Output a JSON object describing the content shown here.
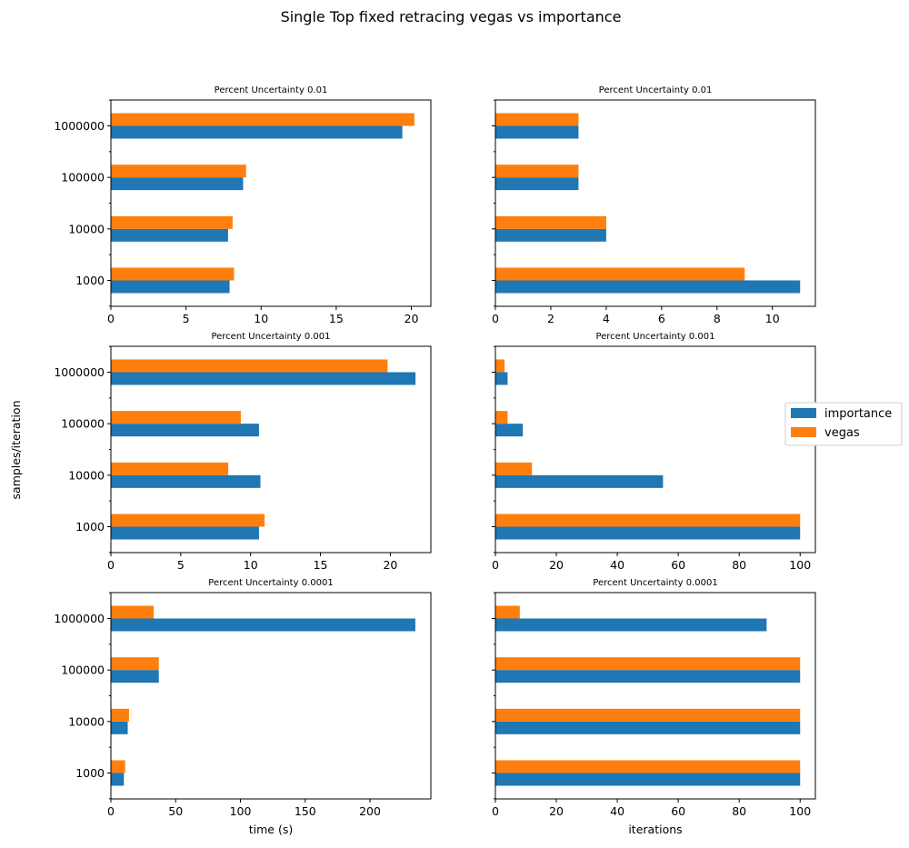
{
  "figure": {
    "title": "Single Top fixed retracing vegas vs importance",
    "ylabel": "samples/iteration"
  },
  "legend": {
    "placement": "right",
    "entries": [
      {
        "label": "importance",
        "color": "#1f77b4"
      },
      {
        "label": "vegas",
        "color": "#ff7f0e"
      }
    ]
  },
  "chart_data": [
    {
      "type": "bar",
      "orientation": "horizontal",
      "title": "Percent Uncertainty 0.01",
      "xlabel": "",
      "categories": [
        "1000",
        "10000",
        "100000",
        "1000000"
      ],
      "xlim": [
        0,
        21.3
      ],
      "xticks": [
        0,
        5,
        10,
        15,
        20
      ],
      "series": [
        {
          "name": "importance",
          "values": [
            7.9,
            7.8,
            8.8,
            19.4
          ]
        },
        {
          "name": "vegas",
          "values": [
            8.2,
            8.1,
            9.0,
            20.2
          ]
        }
      ]
    },
    {
      "type": "bar",
      "orientation": "horizontal",
      "title": "Percent Uncertainty 0.01",
      "xlabel": "",
      "categories": [
        "1000",
        "10000",
        "100000",
        "1000000"
      ],
      "xlim": [
        0,
        11.55
      ],
      "xticks": [
        0,
        2,
        4,
        6,
        8,
        10
      ],
      "series": [
        {
          "name": "importance",
          "values": [
            11,
            4,
            3,
            3
          ]
        },
        {
          "name": "vegas",
          "values": [
            9,
            4,
            3,
            3
          ]
        }
      ]
    },
    {
      "type": "bar",
      "orientation": "horizontal",
      "title": "Percent Uncertainty 0.001",
      "xlabel": "",
      "categories": [
        "1000",
        "10000",
        "100000",
        "1000000"
      ],
      "xlim": [
        0,
        22.9
      ],
      "xticks": [
        0,
        5,
        10,
        15,
        20
      ],
      "series": [
        {
          "name": "importance",
          "values": [
            10.6,
            10.7,
            10.6,
            21.8
          ]
        },
        {
          "name": "vegas",
          "values": [
            11.0,
            8.4,
            9.3,
            19.8
          ]
        }
      ]
    },
    {
      "type": "bar",
      "orientation": "horizontal",
      "title": "Percent Uncertainty 0.001",
      "xlabel": "",
      "categories": [
        "1000",
        "10000",
        "100000",
        "1000000"
      ],
      "xlim": [
        0,
        105
      ],
      "xticks": [
        0,
        20,
        40,
        60,
        80,
        100
      ],
      "series": [
        {
          "name": "importance",
          "values": [
            100,
            55,
            9,
            4
          ]
        },
        {
          "name": "vegas",
          "values": [
            100,
            12,
            4,
            3
          ]
        }
      ]
    },
    {
      "type": "bar",
      "orientation": "horizontal",
      "title": "Percent Uncertainty 0.0001",
      "xlabel": "time (s)",
      "categories": [
        "1000",
        "10000",
        "100000",
        "1000000"
      ],
      "xlim": [
        0,
        247
      ],
      "xticks": [
        0,
        50,
        100,
        150,
        200
      ],
      "series": [
        {
          "name": "importance",
          "values": [
            10,
            13,
            37,
            235
          ]
        },
        {
          "name": "vegas",
          "values": [
            11,
            14,
            37,
            33
          ]
        }
      ]
    },
    {
      "type": "bar",
      "orientation": "horizontal",
      "title": "Percent Uncertainty 0.0001",
      "xlabel": "iterations",
      "categories": [
        "1000",
        "10000",
        "100000",
        "1000000"
      ],
      "xlim": [
        0,
        105
      ],
      "xticks": [
        0,
        20,
        40,
        60,
        80,
        100
      ],
      "series": [
        {
          "name": "importance",
          "values": [
            100,
            100,
            100,
            89
          ]
        },
        {
          "name": "vegas",
          "values": [
            100,
            100,
            100,
            8
          ]
        }
      ]
    }
  ]
}
